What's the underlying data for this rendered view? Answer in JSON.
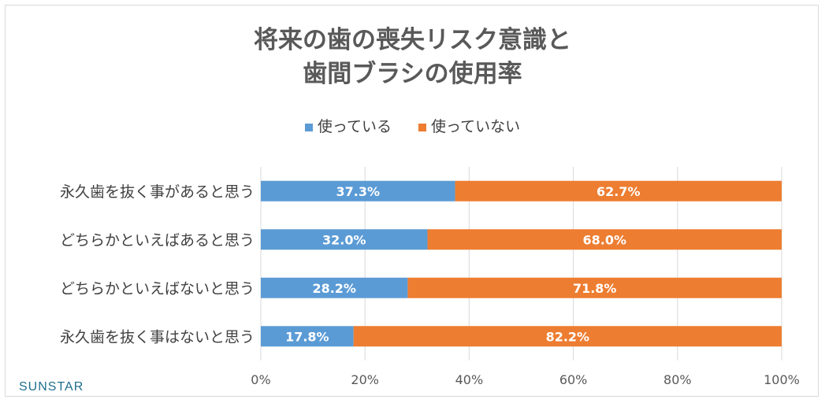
{
  "chart_data": {
    "type": "bar",
    "orientation": "horizontal",
    "stacked": true,
    "title": [
      "将来の歯の喪失リスク意識と",
      "歯間ブラシの使用率"
    ],
    "categories": [
      "永久歯を抜く事があると思う",
      "どちらかといえばあると思う",
      "どちらかといえばないと思う",
      "永久歯を抜く事はないと思う"
    ],
    "series": [
      {
        "name": "使っている",
        "color": "#5b9bd5",
        "values": [
          37.3,
          32.0,
          28.2,
          17.8
        ],
        "labels": [
          "37.3%",
          "32.0%",
          "28.2%",
          "17.8%"
        ]
      },
      {
        "name": "使っていない",
        "color": "#ed7d31",
        "values": [
          62.7,
          68.0,
          71.8,
          82.2
        ],
        "labels": [
          "62.7%",
          "68.0%",
          "71.8%",
          "82.2%"
        ]
      }
    ],
    "xlim": [
      0,
      100
    ],
    "xticks": [
      "0%",
      "20%",
      "40%",
      "60%",
      "80%",
      "100%"
    ],
    "grid": true,
    "legend_position": "top"
  },
  "brand": "SUNSTAR"
}
